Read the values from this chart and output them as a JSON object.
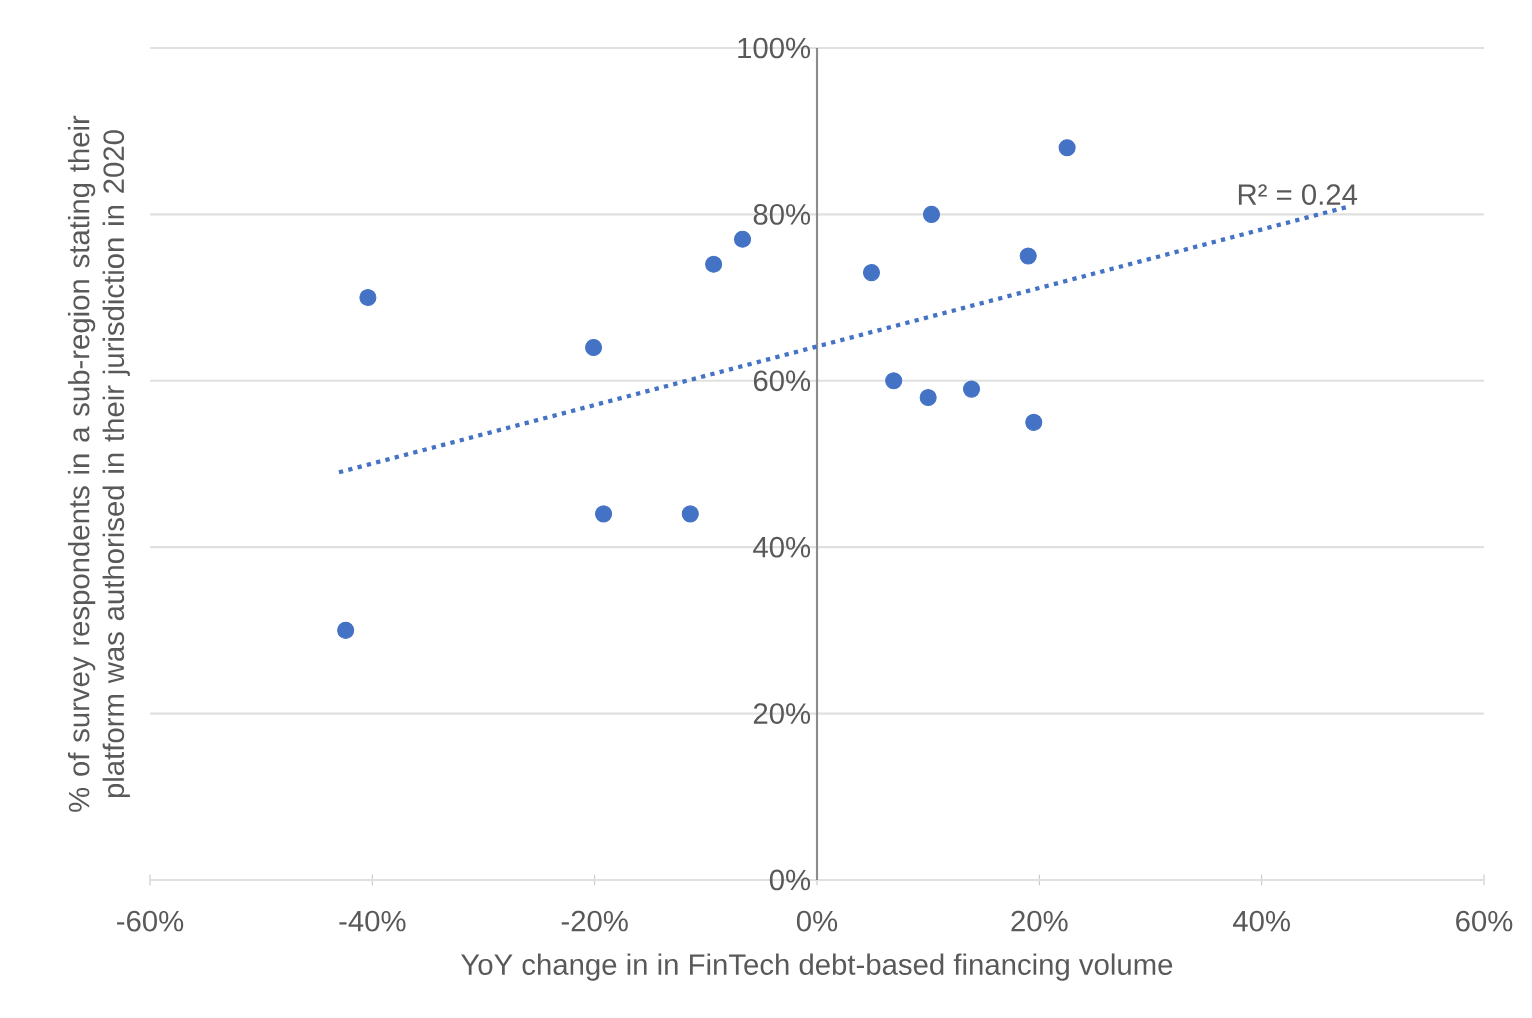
{
  "chart_data": {
    "type": "scatter",
    "xlabel": "YoY change in in FinTech debt-based financing volume",
    "ylabel": "% of survey respondents in a sub-region stating their platform was authorised in their jurisdiction in 2020",
    "xlim": [
      -60,
      60
    ],
    "ylim": [
      0,
      100
    ],
    "xticks": [
      {
        "value": -60,
        "label": "-60%"
      },
      {
        "value": -40,
        "label": "-40%"
      },
      {
        "value": -20,
        "label": "-20%"
      },
      {
        "value": 0,
        "label": "0%"
      },
      {
        "value": 20,
        "label": "20%"
      },
      {
        "value": 40,
        "label": "40%"
      },
      {
        "value": 60,
        "label": "60%"
      }
    ],
    "yticks": [
      {
        "value": 0,
        "label": "0%"
      },
      {
        "value": 20,
        "label": "20%"
      },
      {
        "value": 40,
        "label": "40%"
      },
      {
        "value": 60,
        "label": "60%"
      },
      {
        "value": 80,
        "label": "80%"
      },
      {
        "value": 100,
        "label": "100%"
      }
    ],
    "grid": "y",
    "series": [
      {
        "type": "scatter",
        "color": "#4472c4",
        "marker": "circle",
        "x": [
          -42.4,
          -40.4,
          -20.1,
          -19.2,
          -11.4,
          -9.3,
          -6.7,
          4.9,
          6.9,
          10.0,
          10.3,
          13.9,
          19.0,
          19.5,
          22.5
        ],
        "values": [
          30,
          70,
          64,
          44,
          44,
          74,
          77,
          73,
          60,
          58,
          80,
          59,
          75,
          55,
          88
        ]
      },
      {
        "type": "line",
        "color": "#4472c4",
        "line_style": "dotted",
        "x": [
          -43,
          48
        ],
        "values": [
          49,
          81
        ]
      }
    ],
    "annotations": [
      "R² = 0.24"
    ]
  }
}
